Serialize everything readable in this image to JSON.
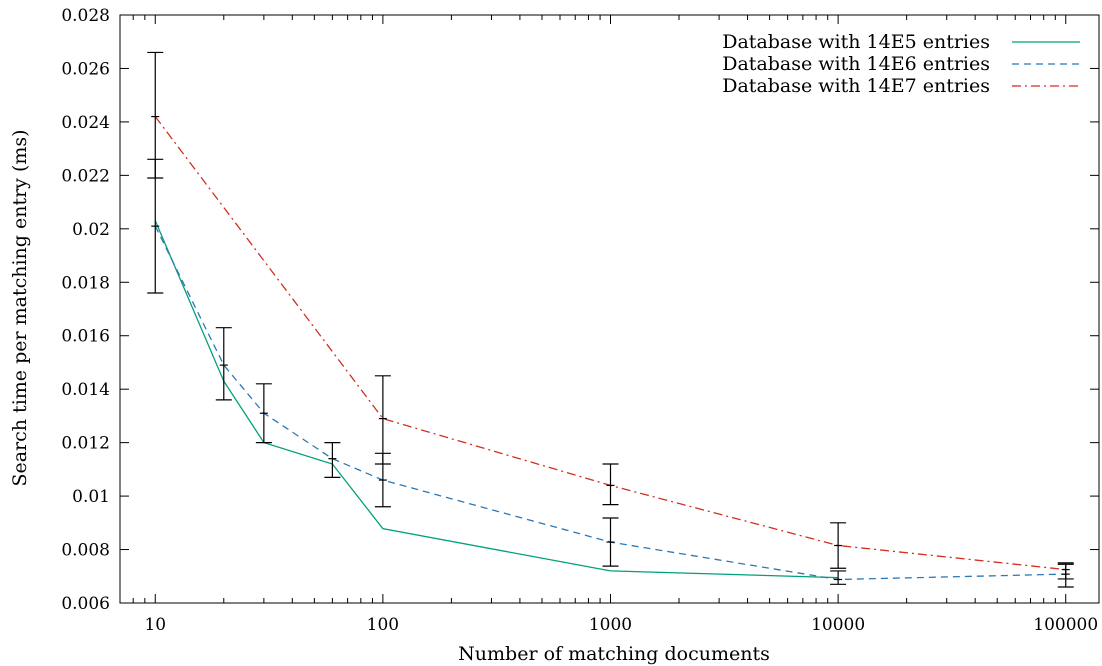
{
  "chart_data": {
    "type": "line",
    "title": "",
    "xlabel": "Number of matching documents",
    "ylabel": "Search time per matching entry (ms)",
    "xscale": "log",
    "xlim": [
      7,
      140000
    ],
    "ylim": [
      0.006,
      0.028
    ],
    "x_ticks": [
      10,
      100,
      1000,
      10000,
      100000
    ],
    "x_tick_labels": [
      "10",
      "100",
      "1000",
      "10000",
      "100000"
    ],
    "y_ticks": [
      0.006,
      0.008,
      0.01,
      0.012,
      0.014,
      0.016,
      0.018,
      0.02,
      0.022,
      0.024,
      0.026,
      0.028
    ],
    "y_tick_labels": [
      "0.006",
      "0.008",
      "0.01",
      "0.012",
      "0.014",
      "0.016",
      "0.018",
      "0.02",
      "0.022",
      "0.024",
      "0.026",
      "0.028"
    ],
    "grid": false,
    "legend_position": "top-right",
    "series": [
      {
        "name": "Database with 14E5 entries",
        "color": "#00a07a",
        "line_style": "solid",
        "x": [
          10,
          20,
          30,
          60,
          100,
          1000,
          10000
        ],
        "y": [
          0.0203,
          0.0143,
          0.012,
          0.0112,
          0.00878,
          0.0072,
          0.00695
        ],
        "error_bars": []
      },
      {
        "name": "Database with 14E6 entries",
        "color": "#2a78b8",
        "line_style": "dashed",
        "x": [
          10,
          20,
          30,
          60,
          100,
          1000,
          10000,
          100000
        ],
        "y": [
          0.0201,
          0.0149,
          0.0131,
          0.0114,
          0.0106,
          0.00828,
          0.00688,
          0.00708
        ],
        "error_bars": [
          {
            "x": 10,
            "low": 0.0176,
            "high": 0.0226
          },
          {
            "x": 20,
            "low": 0.0136,
            "high": 0.0163
          },
          {
            "x": 30,
            "low": 0.012,
            "high": 0.0142
          },
          {
            "x": 60,
            "low": 0.0107,
            "high": 0.012
          },
          {
            "x": 100,
            "low": 0.0096,
            "high": 0.0116
          },
          {
            "x": 1000,
            "low": 0.00738,
            "high": 0.00918
          },
          {
            "x": 10000,
            "low": 0.0067,
            "high": 0.0072
          },
          {
            "x": 100000,
            "low": 0.0066,
            "high": 0.00745
          }
        ]
      },
      {
        "name": "Database with 14E7 entries",
        "color": "#d03020",
        "line_style": "dash-dot",
        "x": [
          10,
          100,
          1000,
          10000,
          100000
        ],
        "y": [
          0.0242,
          0.0129,
          0.0104,
          0.00815,
          0.00725
        ],
        "error_bars": [
          {
            "x": 10,
            "low": 0.0219,
            "high": 0.0266
          },
          {
            "x": 100,
            "low": 0.0112,
            "high": 0.0145
          },
          {
            "x": 1000,
            "low": 0.00968,
            "high": 0.0112
          },
          {
            "x": 10000,
            "low": 0.0073,
            "high": 0.009
          },
          {
            "x": 100000,
            "low": 0.0069,
            "high": 0.0075
          }
        ]
      }
    ]
  }
}
